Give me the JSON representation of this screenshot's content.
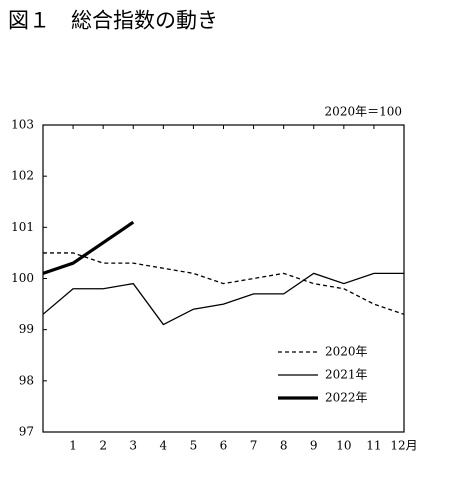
{
  "chart_data": {
    "type": "line",
    "title": "図１　総合指数の動き",
    "subtitle": "2020年＝100",
    "x": [
      0,
      1,
      2,
      3,
      4,
      5,
      6,
      7,
      8,
      9,
      10,
      11,
      12
    ],
    "xlim": [
      0,
      12
    ],
    "xticks": [
      1,
      2,
      3,
      4,
      5,
      6,
      7,
      8,
      9,
      10,
      11,
      {
        "value": 12,
        "label": "12月"
      }
    ],
    "ylim": [
      97,
      103
    ],
    "yticks": [
      97,
      98,
      99,
      100,
      101,
      102,
      103
    ],
    "legend": "lower right",
    "series": [
      {
        "name": "2020年",
        "color": "#000000",
        "dash": true,
        "width": 1.3,
        "values": [
          100.5,
          100.5,
          100.3,
          100.3,
          100.2,
          100.1,
          99.9,
          100.0,
          100.1,
          99.9,
          99.8,
          99.5,
          99.3
        ]
      },
      {
        "name": "2021年",
        "color": "#000000",
        "dash": false,
        "width": 1.3,
        "values": [
          99.3,
          99.8,
          99.8,
          99.9,
          99.1,
          99.4,
          99.5,
          99.7,
          99.7,
          100.1,
          99.9,
          100.1,
          100.1
        ]
      },
      {
        "name": "2022年",
        "color": "#000000",
        "dash": false,
        "width": 3.2,
        "values": [
          100.1,
          100.3,
          100.7,
          101.1,
          null,
          null,
          null,
          null,
          null,
          null,
          null,
          null,
          null
        ]
      }
    ]
  }
}
